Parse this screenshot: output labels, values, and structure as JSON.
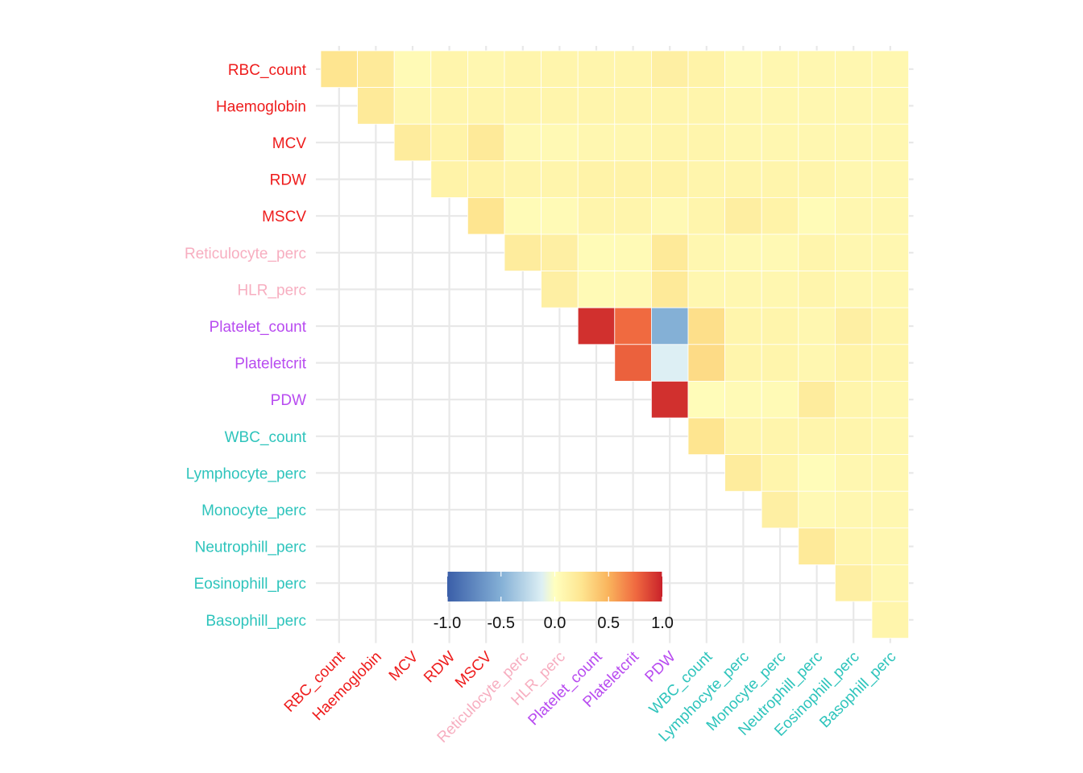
{
  "chart_data": {
    "type": "heatmap",
    "title": "",
    "xlabel": "",
    "ylabel": "",
    "variables": [
      "RBC_count",
      "Haemoglobin",
      "MCV",
      "RDW",
      "MSCV",
      "Reticulocyte_perc",
      "HLR_perc",
      "Platelet_count",
      "Plateletcrit",
      "PDW",
      "WBC_count",
      "Lymphocyte_perc",
      "Monocyte_perc",
      "Neutrophill_perc",
      "Eosinophill_perc",
      "Basophill_perc"
    ],
    "label_colors": [
      "#ee1c1c",
      "#ee1c1c",
      "#ee1c1c",
      "#ee1c1c",
      "#ee1c1c",
      "#f7aec0",
      "#f7aec0",
      "#b84bf0",
      "#b84bf0",
      "#b84bf0",
      "#2ec4bc",
      "#2ec4bc",
      "#2ec4bc",
      "#2ec4bc",
      "#2ec4bc",
      "#2ec4bc"
    ],
    "matrix": [
      [
        0.25,
        0.2,
        0.05,
        0.1,
        0.08,
        0.1,
        0.1,
        0.1,
        0.1,
        0.15,
        0.12,
        0.06,
        0.08,
        0.08,
        0.08,
        0.08
      ],
      [
        null,
        0.2,
        0.08,
        0.1,
        0.1,
        0.1,
        0.1,
        0.1,
        0.1,
        0.1,
        0.1,
        0.08,
        0.08,
        0.08,
        0.08,
        0.08
      ],
      [
        null,
        null,
        0.18,
        0.12,
        0.2,
        0.06,
        0.06,
        0.08,
        0.08,
        0.1,
        0.1,
        0.08,
        0.08,
        0.08,
        0.08,
        0.08
      ],
      [
        null,
        null,
        null,
        0.12,
        0.12,
        0.1,
        0.1,
        0.12,
        0.12,
        0.12,
        0.1,
        0.1,
        0.1,
        0.1,
        0.08,
        0.08
      ],
      [
        null,
        null,
        null,
        null,
        0.25,
        0.04,
        0.05,
        0.1,
        0.1,
        0.06,
        0.1,
        0.16,
        0.12,
        0.04,
        0.08,
        0.08
      ],
      [
        null,
        null,
        null,
        null,
        null,
        0.18,
        0.15,
        0.04,
        0.05,
        0.2,
        0.08,
        0.06,
        0.06,
        0.1,
        0.08,
        0.08
      ],
      [
        null,
        null,
        null,
        null,
        null,
        null,
        0.15,
        0.05,
        0.06,
        0.2,
        0.08,
        0.08,
        0.08,
        0.1,
        0.08,
        0.08
      ],
      [
        null,
        null,
        null,
        null,
        null,
        null,
        null,
        0.95,
        0.75,
        -0.5,
        0.28,
        0.1,
        0.1,
        0.08,
        0.15,
        0.1
      ],
      [
        null,
        null,
        null,
        null,
        null,
        null,
        null,
        null,
        0.78,
        -0.12,
        0.3,
        0.1,
        0.1,
        0.08,
        0.12,
        0.1
      ],
      [
        null,
        null,
        null,
        null,
        null,
        null,
        null,
        null,
        null,
        0.95,
        0.03,
        0.05,
        0.05,
        0.18,
        0.1,
        0.08
      ],
      [
        null,
        null,
        null,
        null,
        null,
        null,
        null,
        null,
        null,
        null,
        0.25,
        0.1,
        0.1,
        0.1,
        0.1,
        0.08
      ],
      [
        null,
        null,
        null,
        null,
        null,
        null,
        null,
        null,
        null,
        null,
        null,
        0.18,
        0.1,
        0.03,
        0.08,
        0.08
      ],
      [
        null,
        null,
        null,
        null,
        null,
        null,
        null,
        null,
        null,
        null,
        null,
        null,
        0.15,
        0.06,
        0.08,
        0.08
      ],
      [
        null,
        null,
        null,
        null,
        null,
        null,
        null,
        null,
        null,
        null,
        null,
        null,
        null,
        0.2,
        0.1,
        0.08
      ],
      [
        null,
        null,
        null,
        null,
        null,
        null,
        null,
        null,
        null,
        null,
        null,
        null,
        null,
        null,
        0.15,
        0.08
      ],
      [
        null,
        null,
        null,
        null,
        null,
        null,
        null,
        null,
        null,
        null,
        null,
        null,
        null,
        null,
        null,
        0.1
      ]
    ],
    "color_scale": {
      "min": -1.0,
      "max": 1.0,
      "stops": [
        {
          "value": -1.0,
          "color": "#3a5ea8"
        },
        {
          "value": -0.5,
          "color": "#84b0d6"
        },
        {
          "value": -0.12,
          "color": "#ddeff4"
        },
        {
          "value": 0.0,
          "color": "#ffffbf"
        },
        {
          "value": 0.25,
          "color": "#fee590"
        },
        {
          "value": 0.5,
          "color": "#f9b35c"
        },
        {
          "value": 0.75,
          "color": "#f06a40"
        },
        {
          "value": 1.0,
          "color": "#c9212a"
        }
      ]
    },
    "legend": {
      "placement": "bottom-left-inside",
      "ticks": [
        -1.0,
        -0.5,
        0.0,
        0.5,
        1.0
      ],
      "tick_labels": [
        "-1.0",
        "-0.5",
        "0.0",
        "0.5",
        "1.0"
      ]
    },
    "grid": true
  }
}
